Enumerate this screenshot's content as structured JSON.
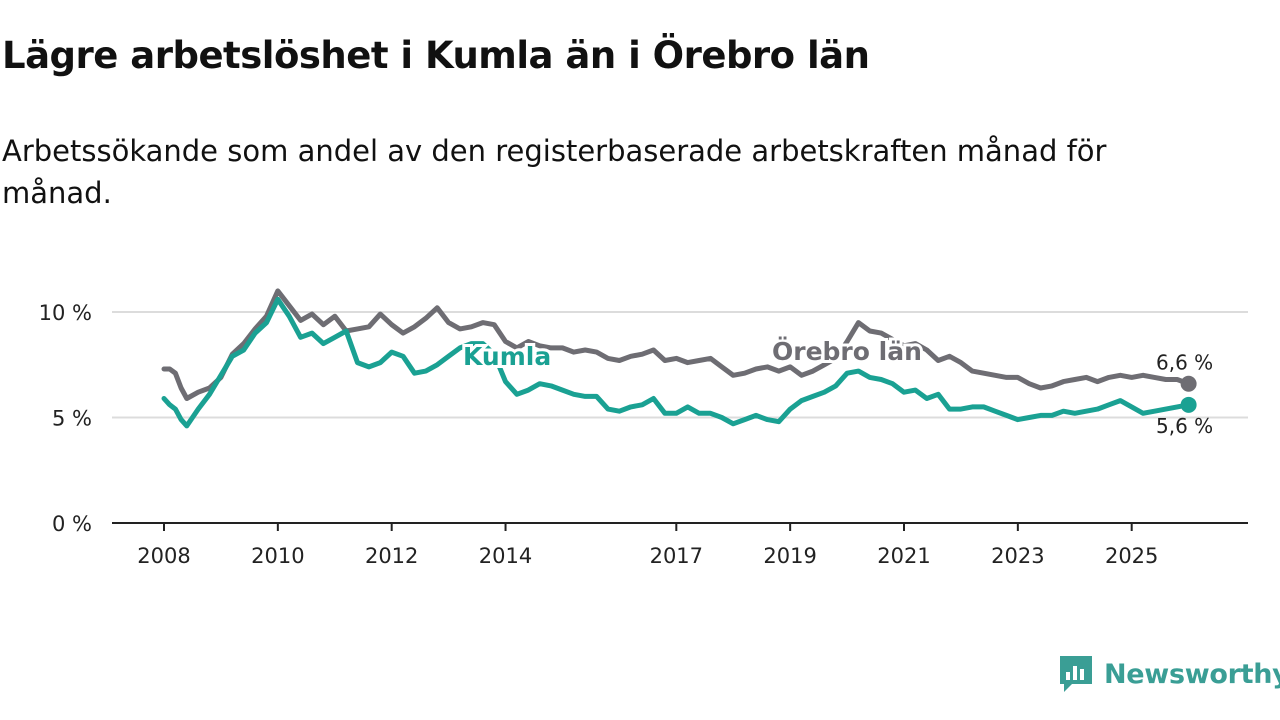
{
  "title": "Lägre arbetslöshet i Kumla än i Örebro län",
  "subtitle": "Arbetssökande som andel av den registerbaserade arbetskraften månad för månad.",
  "brand": {
    "name": "Newsworthy",
    "icon": "newsworthy-logo-icon",
    "color": "#3a9e95"
  },
  "chart_data": {
    "type": "line",
    "title": "Lägre arbetslöshet i Kumla än i Örebro län",
    "xlabel": "",
    "ylabel": "",
    "ylim": [
      0,
      10
    ],
    "xlim": [
      2008,
      2026.2
    ],
    "y_ticks": [
      {
        "value": 0,
        "label": "0 %"
      },
      {
        "value": 5,
        "label": "5 %"
      },
      {
        "value": 10,
        "label": "10 %"
      }
    ],
    "x_ticks": [
      {
        "value": 2008,
        "label": "2008"
      },
      {
        "value": 2010,
        "label": "2010"
      },
      {
        "value": 2012,
        "label": "2012"
      },
      {
        "value": 2014,
        "label": "2014"
      },
      {
        "value": 2017,
        "label": "2017"
      },
      {
        "value": 2019,
        "label": "2019"
      },
      {
        "value": 2021,
        "label": "2021"
      },
      {
        "value": 2023,
        "label": "2023"
      },
      {
        "value": 2025,
        "label": "2025"
      }
    ],
    "grid": true,
    "series": [
      {
        "name": "Örebro län",
        "label": "Örebro län",
        "color": "#6e6d73",
        "end_label": "6,6 %",
        "x": [
          2008.0,
          2008.1,
          2008.2,
          2008.3,
          2008.4,
          2008.6,
          2008.8,
          2009.0,
          2009.2,
          2009.4,
          2009.6,
          2009.8,
          2010.0,
          2010.2,
          2010.4,
          2010.6,
          2010.8,
          2011.0,
          2011.2,
          2011.4,
          2011.6,
          2011.8,
          2012.0,
          2012.2,
          2012.4,
          2012.6,
          2012.8,
          2013.0,
          2013.2,
          2013.4,
          2013.6,
          2013.8,
          2014.0,
          2014.2,
          2014.4,
          2014.6,
          2014.8,
          2015.0,
          2015.2,
          2015.4,
          2015.6,
          2015.8,
          2016.0,
          2016.2,
          2016.4,
          2016.6,
          2016.8,
          2017.0,
          2017.2,
          2017.4,
          2017.6,
          2017.8,
          2018.0,
          2018.2,
          2018.4,
          2018.6,
          2018.8,
          2019.0,
          2019.2,
          2019.4,
          2019.6,
          2019.8,
          2020.0,
          2020.2,
          2020.4,
          2020.6,
          2020.8,
          2021.0,
          2021.2,
          2021.4,
          2021.6,
          2021.8,
          2022.0,
          2022.2,
          2022.4,
          2022.6,
          2022.8,
          2023.0,
          2023.2,
          2023.4,
          2023.6,
          2023.8,
          2024.0,
          2024.2,
          2024.4,
          2024.6,
          2024.8,
          2025.0,
          2025.2,
          2025.4,
          2025.6,
          2025.8,
          2026.0
        ],
        "values": [
          7.3,
          7.3,
          7.1,
          6.4,
          5.9,
          6.2,
          6.4,
          6.9,
          8.0,
          8.5,
          9.2,
          9.8,
          11.0,
          10.3,
          9.6,
          9.9,
          9.4,
          9.8,
          9.1,
          9.2,
          9.3,
          9.9,
          9.4,
          9.0,
          9.3,
          9.7,
          10.2,
          9.5,
          9.2,
          9.3,
          9.5,
          9.4,
          8.6,
          8.3,
          8.6,
          8.4,
          8.3,
          8.3,
          8.1,
          8.2,
          8.1,
          7.8,
          7.7,
          7.9,
          8.0,
          8.2,
          7.7,
          7.8,
          7.6,
          7.7,
          7.8,
          7.4,
          7.0,
          7.1,
          7.3,
          7.4,
          7.2,
          7.4,
          7.0,
          7.2,
          7.5,
          7.8,
          8.6,
          9.5,
          9.1,
          9.0,
          8.7,
          8.4,
          8.5,
          8.2,
          7.7,
          7.9,
          7.6,
          7.2,
          7.1,
          7.0,
          6.9,
          6.9,
          6.6,
          6.4,
          6.5,
          6.7,
          6.8,
          6.9,
          6.7,
          6.9,
          7.0,
          6.9,
          7.0,
          6.9,
          6.8,
          6.8,
          6.6
        ]
      },
      {
        "name": "Kumla",
        "label": "Kumla",
        "color": "#1aa193",
        "end_label": "5,6 %",
        "x": [
          2008.0,
          2008.1,
          2008.2,
          2008.3,
          2008.4,
          2008.6,
          2008.8,
          2009.0,
          2009.2,
          2009.4,
          2009.6,
          2009.8,
          2010.0,
          2010.2,
          2010.4,
          2010.6,
          2010.8,
          2011.0,
          2011.2,
          2011.4,
          2011.6,
          2011.8,
          2012.0,
          2012.2,
          2012.4,
          2012.6,
          2012.8,
          2013.0,
          2013.2,
          2013.4,
          2013.6,
          2013.8,
          2014.0,
          2014.2,
          2014.4,
          2014.6,
          2014.8,
          2015.0,
          2015.2,
          2015.4,
          2015.6,
          2015.8,
          2016.0,
          2016.2,
          2016.4,
          2016.6,
          2016.8,
          2017.0,
          2017.2,
          2017.4,
          2017.6,
          2017.8,
          2018.0,
          2018.2,
          2018.4,
          2018.6,
          2018.8,
          2019.0,
          2019.2,
          2019.4,
          2019.6,
          2019.8,
          2020.0,
          2020.2,
          2020.4,
          2020.6,
          2020.8,
          2021.0,
          2021.2,
          2021.4,
          2021.6,
          2021.8,
          2022.0,
          2022.2,
          2022.4,
          2022.6,
          2022.8,
          2023.0,
          2023.2,
          2023.4,
          2023.6,
          2023.8,
          2024.0,
          2024.2,
          2024.4,
          2024.6,
          2024.8,
          2025.0,
          2025.2,
          2025.4,
          2025.6,
          2025.8,
          2026.0
        ],
        "values": [
          5.9,
          5.6,
          5.4,
          4.9,
          4.6,
          5.4,
          6.1,
          7.0,
          7.9,
          8.2,
          9.0,
          9.5,
          10.6,
          9.8,
          8.8,
          9.0,
          8.5,
          8.8,
          9.1,
          7.6,
          7.4,
          7.6,
          8.1,
          7.9,
          7.1,
          7.2,
          7.5,
          7.9,
          8.3,
          8.5,
          8.5,
          8.0,
          6.7,
          6.1,
          6.3,
          6.6,
          6.5,
          6.3,
          6.1,
          6.0,
          6.0,
          5.4,
          5.3,
          5.5,
          5.6,
          5.9,
          5.2,
          5.2,
          5.5,
          5.2,
          5.2,
          5.0,
          4.7,
          4.9,
          5.1,
          4.9,
          4.8,
          5.4,
          5.8,
          6.0,
          6.2,
          6.5,
          7.1,
          7.2,
          6.9,
          6.8,
          6.6,
          6.2,
          6.3,
          5.9,
          6.1,
          5.4,
          5.4,
          5.5,
          5.5,
          5.3,
          5.1,
          4.9,
          5.0,
          5.1,
          5.1,
          5.3,
          5.2,
          5.3,
          5.4,
          5.6,
          5.8,
          5.5,
          5.2,
          5.3,
          5.4,
          5.5,
          5.6
        ]
      }
    ]
  }
}
